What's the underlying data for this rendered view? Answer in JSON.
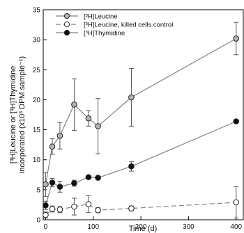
{
  "chart_data": {
    "type": "scatter",
    "xlabel": "Time (d)",
    "ylabel_line1": "[³H]Leucine or [³H]Thymidine",
    "ylabel_line2": "incorporated (x10³ DPM sample⁻¹)",
    "xlim": [
      -5,
      415
    ],
    "ylim": [
      0,
      35
    ],
    "xticks": [
      0,
      100,
      200,
      300,
      400
    ],
    "yticks": [
      0,
      5,
      10,
      15,
      20,
      25,
      30,
      35
    ],
    "grid": false,
    "legend_position": "top-left",
    "series": [
      {
        "name": "[³H]Leucine",
        "marker": "circle",
        "marker_fill": "#b3b3b3",
        "line_style": "solid",
        "line_color": "#808080",
        "points": [
          {
            "x": 0,
            "y": 5.9,
            "err": 2.0
          },
          {
            "x": 14,
            "y": 12.2,
            "err": 1.3
          },
          {
            "x": 30,
            "y": 14.0,
            "err": 2.2
          },
          {
            "x": 60,
            "y": 19.2,
            "err": 4.3
          },
          {
            "x": 90,
            "y": 16.9,
            "err": 1.3
          },
          {
            "x": 110,
            "y": 15.6,
            "err": 4.6
          },
          {
            "x": 180,
            "y": 20.4,
            "err": 4.8
          },
          {
            "x": 400,
            "y": 30.2,
            "err": 2.7
          }
        ]
      },
      {
        "name": "[³H]Leucine, killed cells control",
        "marker": "circle",
        "marker_fill": "#ffffff",
        "line_style": "dashed",
        "line_color": "#808080",
        "points": [
          {
            "x": 0,
            "y": 0.8,
            "err": 0.5
          },
          {
            "x": 14,
            "y": 1.8,
            "err": 0.5
          },
          {
            "x": 30,
            "y": 1.7,
            "err": 0.5
          },
          {
            "x": 60,
            "y": 2.2,
            "err": 1.4
          },
          {
            "x": 90,
            "y": 2.6,
            "err": 1.4
          },
          {
            "x": 110,
            "y": 1.6,
            "err": 0.4
          },
          {
            "x": 180,
            "y": 1.9,
            "err": 0.4
          },
          {
            "x": 400,
            "y": 2.9,
            "err": 2.6
          }
        ]
      },
      {
        "name": "[³H]Thymidine",
        "marker": "circle",
        "marker_fill": "#111111",
        "line_style": "solid",
        "line_color": "#808080",
        "points": [
          {
            "x": 0,
            "y": 2.4,
            "err": 0.7
          },
          {
            "x": 14,
            "y": 6.2,
            "err": 0.7
          },
          {
            "x": 30,
            "y": 5.5,
            "err": 0.9
          },
          {
            "x": 60,
            "y": 6.1,
            "err": 0.5
          },
          {
            "x": 90,
            "y": 7.1,
            "err": 0.3
          },
          {
            "x": 110,
            "y": 7.0,
            "err": 0.3
          },
          {
            "x": 180,
            "y": 8.9,
            "err": 0.8
          },
          {
            "x": 400,
            "y": 16.4,
            "err": 0.2
          }
        ]
      }
    ]
  }
}
